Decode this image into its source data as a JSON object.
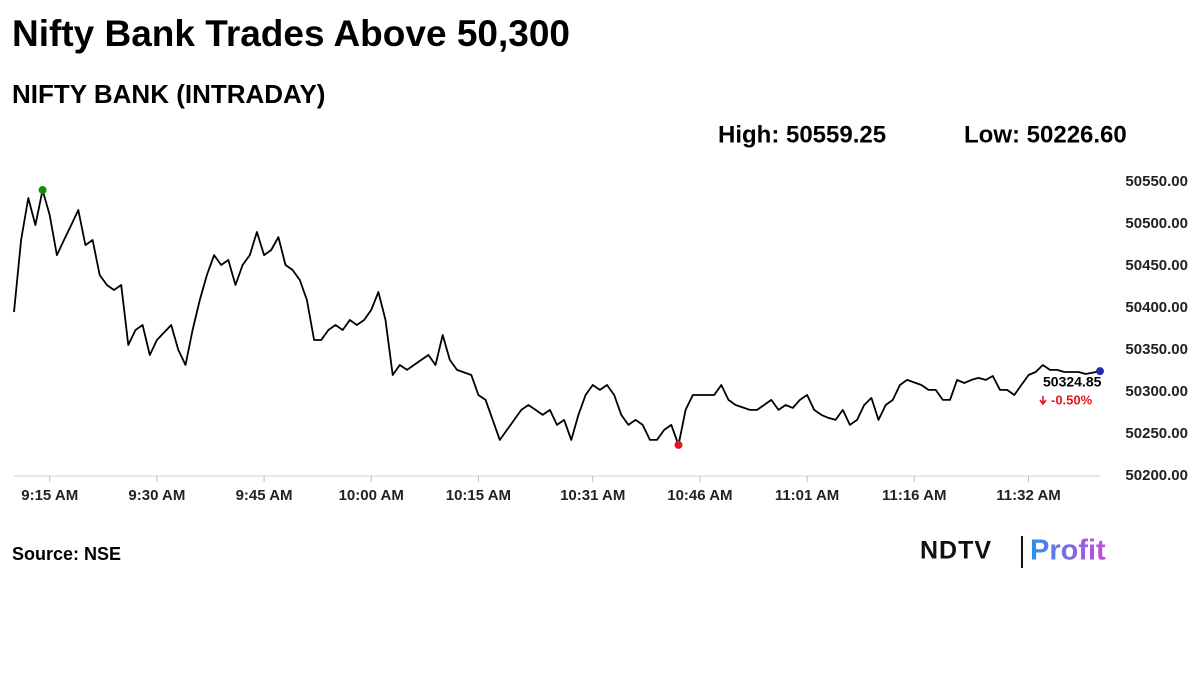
{
  "chart_data": {
    "type": "line",
    "title": "Nifty Bank Trades Above 50,300",
    "subtitle": "NIFTY BANK (INTRADAY)",
    "high_label": "High: 50559.25",
    "low_label": "Low: 50226.60",
    "last_value": 50324.85,
    "change": {
      "value": -0.5,
      "label": "-0.50%"
    },
    "source": "Source: NSE",
    "brand": "NDTV",
    "brand_product": "Profit",
    "x": [
      550,
      551,
      552,
      553,
      554,
      555,
      556,
      557,
      558,
      559,
      560,
      561,
      562,
      563,
      564,
      565,
      566,
      567,
      568,
      569,
      570,
      572,
      573,
      574,
      575,
      576,
      577,
      578,
      579,
      580,
      581,
      582,
      583,
      584,
      585,
      586,
      587,
      588,
      589,
      590,
      591,
      592,
      593,
      594,
      595,
      596,
      597,
      598,
      599,
      600,
      601,
      602,
      603,
      604,
      605,
      607,
      608,
      609,
      610,
      611,
      612,
      614,
      615,
      616,
      617,
      618,
      619,
      621,
      622,
      623,
      624,
      625,
      626,
      627,
      628,
      629,
      630,
      631,
      632,
      633,
      634,
      635,
      636,
      637,
      638,
      639,
      640,
      641,
      642,
      643,
      644,
      645,
      647,
      648,
      649,
      650,
      651,
      653,
      654,
      656,
      657,
      658,
      659,
      660,
      661,
      662,
      663,
      664,
      665,
      666,
      667,
      668,
      669,
      670,
      671,
      672,
      673,
      674,
      675,
      677,
      678,
      679,
      680,
      681,
      682,
      683,
      684,
      685,
      686,
      687,
      688,
      689,
      690,
      691,
      692,
      693,
      694,
      695,
      696,
      697,
      698,
      699,
      700,
      702
    ],
    "series": [
      {
        "name": "NIFTY BANK",
        "color": "#000000",
        "values": [
          50395.3,
          50481,
          50531,
          50498.8,
          50540.5,
          50510.7,
          50463.1,
          50481,
          50498.8,
          50516.7,
          50475,
          50481,
          50439.3,
          50427.4,
          50421.5,
          50427.4,
          50356,
          50373.9,
          50379.8,
          50344.1,
          50362,
          50379.8,
          50350.1,
          50332.2,
          50373.9,
          50409.6,
          50439.3,
          50463.1,
          50451.2,
          50457.2,
          50427.4,
          50451.2,
          50463.1,
          50490.5,
          50463.1,
          50469.1,
          50484.5,
          50451.2,
          50445.3,
          50433.4,
          50409.6,
          50362,
          50362,
          50373.9,
          50379.8,
          50373.9,
          50385.8,
          50379.8,
          50385.8,
          50397.7,
          50419.1,
          50385.8,
          50320.3,
          50332.2,
          50326.3,
          50338.2,
          50344.1,
          50332.2,
          50367.9,
          50338.2,
          50326.3,
          50320.3,
          50296.5,
          50290.6,
          50266.8,
          50243,
          50254.9,
          50278.7,
          50284.6,
          50278.7,
          50272.7,
          50278.7,
          50260.8,
          50266.8,
          50243,
          50272.7,
          50296.5,
          50308.4,
          50302.5,
          50308.4,
          50296.5,
          50272.7,
          50260.8,
          50266.8,
          50260.8,
          50243,
          50243,
          50254.9,
          50260.8,
          50237,
          50278.7,
          50296.5,
          50296.5,
          50296.5,
          50308.4,
          50290.6,
          50284.6,
          50278.7,
          50278.7,
          50290.6,
          50278.7,
          50284.6,
          50281.1,
          50290.6,
          50296.5,
          50278.7,
          50272.7,
          50269.2,
          50266.8,
          50278.7,
          50260.8,
          50266.8,
          50284.6,
          50293,
          50266.8,
          50284.6,
          50290.6,
          50308.4,
          50314.4,
          50308.4,
          50302.5,
          50302.5,
          50290.6,
          50290.6,
          50314.4,
          50310.8,
          50314.4,
          50316.8,
          50314.4,
          50319.1,
          50302.5,
          50302.5,
          50296.5,
          50308.4,
          50320.3,
          50323.9,
          50332.2,
          50326.3,
          50326.3,
          50323.9,
          50323.9,
          50323.9,
          50321.5,
          50324.85
        ]
      }
    ],
    "high_color": "#138a07",
    "low_color": "#e8141b",
    "last_color": "#1a2fa8",
    "change_color": "#e8141b",
    "xlim": [
      550,
      702
    ],
    "xticks": [
      {
        "value": 555,
        "label": "9:15 AM"
      },
      {
        "value": 570,
        "label": "9:30 AM"
      },
      {
        "value": 585,
        "label": "9:45 AM"
      },
      {
        "value": 600,
        "label": "10:00 AM"
      },
      {
        "value": 615,
        "label": "10:15 AM"
      },
      {
        "value": 631,
        "label": "10:31 AM"
      },
      {
        "value": 646,
        "label": "10:46 AM"
      },
      {
        "value": 661,
        "label": "11:01 AM"
      },
      {
        "value": 676,
        "label": "11:16 AM"
      },
      {
        "value": 692,
        "label": "11:32 AM"
      }
    ],
    "ylim": [
      50200,
      50562
    ],
    "yticks": [
      {
        "value": 50200,
        "label": "50200.00"
      },
      {
        "value": 50250,
        "label": "50250.00"
      },
      {
        "value": 50300,
        "label": "50300.00"
      },
      {
        "value": 50350,
        "label": "50350.00"
      },
      {
        "value": 50400,
        "label": "50400.00"
      },
      {
        "value": 50450,
        "label": "50450.00"
      },
      {
        "value": 50500,
        "label": "50500.00"
      },
      {
        "value": 50550,
        "label": "50550.00"
      }
    ],
    "grid": false
  }
}
